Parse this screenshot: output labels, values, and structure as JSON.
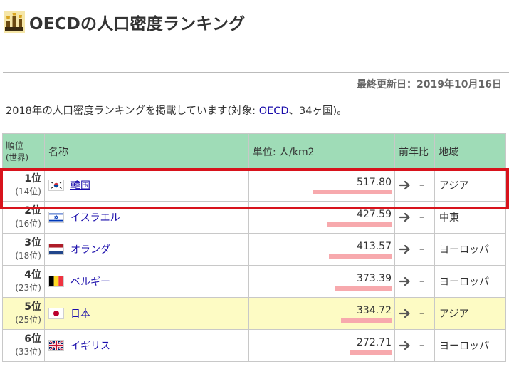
{
  "header": {
    "title": "OECDの人口密度ランキング",
    "icon": "trophy-icon",
    "updated": "最終更新日：2019年10月16日"
  },
  "intro": {
    "before": "2018年の人口密度ランキングを掲載しています(対象: ",
    "link": "OECD",
    "after": "、34ヶ国)。"
  },
  "table": {
    "headers": {
      "rank": "順位",
      "rank_sub": "(世界)",
      "name": "名称",
      "value": "単位: 人/km2",
      "change": "前年比",
      "region": "地域"
    },
    "max_value": 517.8,
    "rows": [
      {
        "rank": "1位",
        "world": "(14位)",
        "name": "韓国",
        "flag": "kr",
        "value": "517.80",
        "num": 517.8,
        "change": "–",
        "region": "アジア",
        "highlight": false
      },
      {
        "rank": "2位",
        "world": "(16位)",
        "name": "イスラエル",
        "flag": "il",
        "value": "427.59",
        "num": 427.59,
        "change": "–",
        "region": "中東",
        "highlight": false
      },
      {
        "rank": "3位",
        "world": "(18位)",
        "name": "オランダ",
        "flag": "nl",
        "value": "413.57",
        "num": 413.57,
        "change": "–",
        "region": "ヨーロッパ",
        "highlight": false
      },
      {
        "rank": "4位",
        "world": "(23位)",
        "name": "ベルギー",
        "flag": "be",
        "value": "373.39",
        "num": 373.39,
        "change": "–",
        "region": "ヨーロッパ",
        "highlight": false
      },
      {
        "rank": "5位",
        "world": "(25位)",
        "name": "日本",
        "flag": "jp",
        "value": "334.72",
        "num": 334.72,
        "change": "–",
        "region": "アジア",
        "highlight": true
      },
      {
        "rank": "6位",
        "world": "(33位)",
        "name": "イギリス",
        "flag": "gb",
        "value": "272.71",
        "num": 272.71,
        "change": "–",
        "region": "ヨーロッパ",
        "highlight": false
      }
    ]
  },
  "colors": {
    "header_bg": "#9fdcb7",
    "highlight_row": "#fdfbc4",
    "bar": "#f7a9ad",
    "selection_box": "#d8131c",
    "link": "#1a0dab"
  }
}
